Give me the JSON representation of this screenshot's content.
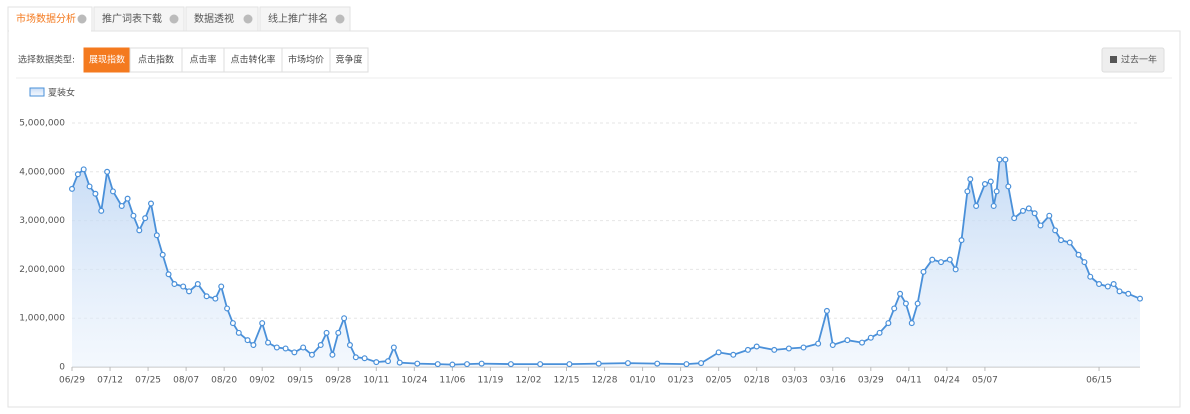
{
  "tabs": [
    "市场数据分析",
    "推广词表下载",
    "数据透视",
    "线上推广排名"
  ],
  "filter": {
    "label": "选择数据类型:",
    "options": [
      "展现指数",
      "点击指数",
      "点击率",
      "点击转化率",
      "市场均价",
      "竞争度"
    ],
    "range_button": "过去一年"
  },
  "chart_data": {
    "type": "line",
    "grid": true,
    "markers": true,
    "area": true,
    "xlim": [
      0,
      365
    ],
    "xticks": [
      {
        "value": 0,
        "label": "06/29"
      },
      {
        "value": 13,
        "label": "07/12"
      },
      {
        "value": 26,
        "label": "07/25"
      },
      {
        "value": 39,
        "label": "08/07"
      },
      {
        "value": 52,
        "label": "08/20"
      },
      {
        "value": 65,
        "label": "09/02"
      },
      {
        "value": 78,
        "label": "09/15"
      },
      {
        "value": 91,
        "label": "09/28"
      },
      {
        "value": 104,
        "label": "10/11"
      },
      {
        "value": 117,
        "label": "10/24"
      },
      {
        "value": 130,
        "label": "11/06"
      },
      {
        "value": 143,
        "label": "11/19"
      },
      {
        "value": 156,
        "label": "12/02"
      },
      {
        "value": 169,
        "label": "12/15"
      },
      {
        "value": 182,
        "label": "12/28"
      },
      {
        "value": 195,
        "label": "01/10"
      },
      {
        "value": 208,
        "label": "01/23"
      },
      {
        "value": 221,
        "label": "02/05"
      },
      {
        "value": 234,
        "label": "02/18"
      },
      {
        "value": 247,
        "label": "03/03"
      },
      {
        "value": 260,
        "label": "03/16"
      },
      {
        "value": 273,
        "label": "03/29"
      },
      {
        "value": 286,
        "label": "04/11"
      },
      {
        "value": 299,
        "label": "04/24"
      },
      {
        "value": 312,
        "label": "05/07"
      },
      {
        "value": 351,
        "label": "06/15"
      }
    ],
    "ylim": [
      0,
      5000000
    ],
    "yticks": [
      0,
      {
        "value": 1000000,
        "label": "1,000,000"
      },
      {
        "value": 2000000,
        "label": "2,000,000"
      },
      {
        "value": 3000000,
        "label": "3,000,000"
      },
      {
        "value": 4000000,
        "label": "4,000,000"
      },
      {
        "value": 5000000,
        "label": "5,000,000"
      }
    ],
    "x": [
      0,
      2,
      4,
      6,
      8,
      10,
      12,
      14,
      17,
      19,
      21,
      23,
      25,
      27,
      29,
      31,
      33,
      35,
      38,
      40,
      43,
      46,
      49,
      51,
      53,
      55,
      57,
      60,
      62,
      65,
      67,
      70,
      73,
      76,
      79,
      82,
      85,
      87,
      89,
      91,
      93,
      95,
      97,
      100,
      104,
      108,
      110,
      112,
      118,
      125,
      130,
      135,
      140,
      150,
      160,
      170,
      180,
      190,
      200,
      210,
      215,
      221,
      226,
      231,
      234,
      240,
      245,
      250,
      255,
      258,
      260,
      265,
      270,
      273,
      276,
      279,
      281,
      283,
      285,
      287,
      289,
      291,
      294,
      297,
      300,
      302,
      304,
      306,
      307,
      309,
      312,
      314,
      315,
      316,
      317,
      319,
      320,
      322,
      325,
      327,
      329,
      331,
      334,
      336,
      338,
      341,
      344,
      346,
      348,
      351,
      354,
      356,
      358,
      361,
      365
    ],
    "series": [
      {
        "name": "夏装女",
        "color": "#4a90d9",
        "values": [
          3650000,
          3950000,
          4050000,
          3700000,
          3550000,
          3200000,
          4000000,
          3600000,
          3300000,
          3450000,
          3100000,
          2800000,
          3050000,
          3350000,
          2700000,
          2300000,
          1900000,
          1700000,
          1650000,
          1550000,
          1700000,
          1450000,
          1400000,
          1650000,
          1200000,
          900000,
          700000,
          550000,
          450000,
          900000,
          500000,
          400000,
          380000,
          300000,
          400000,
          250000,
          450000,
          700000,
          250000,
          700000,
          1000000,
          450000,
          200000,
          180000,
          100000,
          120000,
          400000,
          90000,
          70000,
          60000,
          50000,
          60000,
          70000,
          60000,
          60000,
          60000,
          70000,
          80000,
          70000,
          60000,
          80000,
          300000,
          250000,
          350000,
          420000,
          350000,
          380000,
          400000,
          480000,
          1150000,
          450000,
          550000,
          500000,
          600000,
          700000,
          900000,
          1200000,
          1500000,
          1300000,
          900000,
          1300000,
          1950000,
          2200000,
          2150000,
          2200000,
          2000000,
          2600000,
          3600000,
          3850000,
          3300000,
          3750000,
          3800000,
          3300000,
          3600000,
          4250000,
          4250000,
          3700000,
          3050000,
          3200000,
          3250000,
          3150000,
          2900000,
          3100000,
          2800000,
          2600000,
          2550000,
          2300000,
          2150000,
          1850000,
          1700000,
          1650000,
          1700000,
          1550000,
          1500000,
          1400000
        ]
      }
    ]
  }
}
